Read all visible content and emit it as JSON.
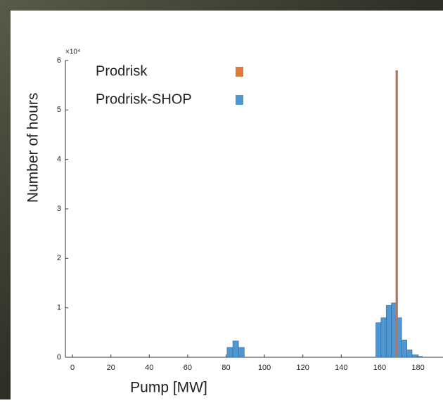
{
  "chart_data": {
    "type": "histogram",
    "xlabel": "Pump [MW]",
    "ylabel": "Number of hours",
    "y_exponent_label": "×10⁴",
    "xlim": [
      -3.7,
      193
    ],
    "xticks": [
      0,
      20,
      40,
      60,
      80,
      100,
      120,
      140,
      160,
      180
    ],
    "ylim": [
      0,
      6
    ],
    "yticks": [
      0,
      1,
      2,
      3,
      4,
      5,
      6
    ],
    "series": [
      {
        "name": "Prodrisk",
        "color": "#b5765e",
        "legend_color": "#e07a3a",
        "bins": [
          168.3,
          169.5
        ],
        "values": [
          5.8
        ]
      },
      {
        "name": "Prodrisk-SHOP",
        "color": "#4f97d3",
        "bins": [
          80.5,
          83.5,
          86.5,
          89.5,
          158,
          160.7,
          163.4,
          166.1,
          168.8,
          171.5,
          174.2,
          176.9,
          179.6,
          182.3
        ],
        "values": [
          0.2,
          0.33,
          0.2,
          0,
          0.7,
          0.8,
          1.05,
          1.1,
          0.8,
          0.35,
          0.15,
          0.05,
          0.02
        ]
      }
    ]
  }
}
